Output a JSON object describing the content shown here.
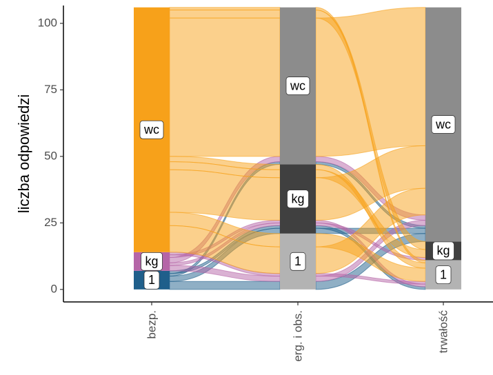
{
  "chart_data": {
    "type": "alluvial",
    "y_label": "liczba odpowiedzi",
    "axes": [
      "bezp.",
      "erg. i obs.",
      "trwałość"
    ],
    "strata": [
      "1",
      "kg",
      "wc"
    ],
    "strata_colors": [
      "#1f5f8b",
      "#b565a7",
      "#f7a11a"
    ],
    "grey_colors": [
      "#b3b3b3",
      "#404040",
      "#8c8c8c"
    ],
    "flows": [
      {
        "path": [
          "1",
          "1",
          "wc"
        ],
        "n": 3
      },
      {
        "path": [
          "1",
          "kg",
          "wc"
        ],
        "n": 2
      },
      {
        "path": [
          "1",
          "wc",
          "wc"
        ],
        "n": 1
      },
      {
        "path": [
          "1",
          "kg",
          "1"
        ],
        "n": 1
      },
      {
        "path": [
          "kg",
          "1",
          "wc"
        ],
        "n": 2
      },
      {
        "path": [
          "kg",
          "kg",
          "kg"
        ],
        "n": 1
      },
      {
        "path": [
          "kg",
          "wc",
          "wc"
        ],
        "n": 2
      },
      {
        "path": [
          "kg",
          "kg",
          "1"
        ],
        "n": 1
      },
      {
        "path": [
          "kg",
          "1",
          "1"
        ],
        "n": 1
      },
      {
        "path": [
          "wc",
          "1",
          "wc"
        ],
        "n": 10
      },
      {
        "path": [
          "wc",
          "1",
          "1"
        ],
        "n": 5
      },
      {
        "path": [
          "wc",
          "kg",
          "wc"
        ],
        "n": 16
      },
      {
        "path": [
          "wc",
          "kg",
          "kg"
        ],
        "n": 3
      },
      {
        "path": [
          "wc",
          "kg",
          "1"
        ],
        "n": 2
      },
      {
        "path": [
          "wc",
          "wc",
          "wc"
        ],
        "n": 52
      },
      {
        "path": [
          "wc",
          "wc",
          "kg"
        ],
        "n": 3
      },
      {
        "path": [
          "wc",
          "wc",
          "1"
        ],
        "n": 1
      }
    ],
    "ylim": [
      -4.7,
      106.7
    ],
    "yticks": [
      0,
      25,
      50,
      75,
      100
    ]
  }
}
